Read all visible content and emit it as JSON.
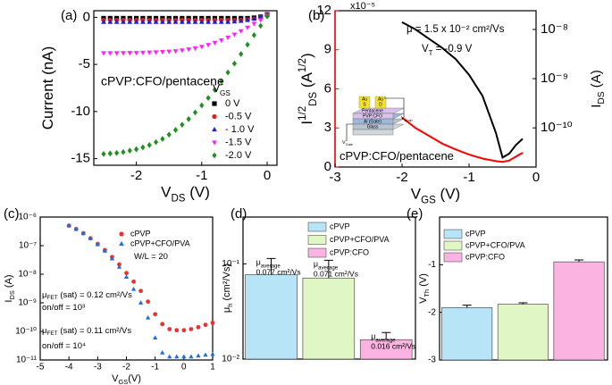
{
  "chart_data": [
    {
      "type": "scatter",
      "panel": "(a)",
      "xlabel": [
        {
          "text": "V"
        },
        {
          "text": "DS",
          "shift": "sub"
        },
        {
          "text": " (V)"
        }
      ],
      "ylabel": [
        {
          "text": "Current (nA)"
        }
      ],
      "xlim": [
        -2.65,
        0.15
      ],
      "xticks": [
        -2,
        -1,
        0
      ],
      "ylim": [
        -15.7,
        0.7
      ],
      "yticks": [
        0,
        -5,
        -10,
        -15
      ],
      "annotation": "cPVP:CFO/pentacene",
      "legend_title": [
        {
          "text": "V"
        },
        {
          "text": "GS",
          "shift": "sub"
        }
      ],
      "x": [
        -2.5,
        -2.4,
        -2.3,
        -2.2,
        -2.1,
        -2.0,
        -1.9,
        -1.8,
        -1.7,
        -1.6,
        -1.5,
        -1.4,
        -1.3,
        -1.2,
        -1.1,
        -1.0,
        -0.9,
        -0.8,
        -0.7,
        -0.6,
        -0.5,
        -0.4,
        -0.3,
        -0.2,
        -0.1,
        0.0
      ],
      "series": [
        {
          "name": "0 V",
          "color": "#000000",
          "marker": "square",
          "values": [
            -0.1,
            -0.1,
            -0.1,
            -0.1,
            -0.1,
            -0.1,
            -0.1,
            -0.1,
            -0.1,
            -0.1,
            -0.1,
            -0.1,
            -0.1,
            -0.1,
            -0.1,
            -0.1,
            -0.1,
            -0.1,
            -0.1,
            -0.1,
            -0.1,
            -0.1,
            -0.1,
            -0.05,
            0.05,
            0.3
          ]
        },
        {
          "name": "-0.5 V",
          "color": "#e02020",
          "marker": "circle",
          "values": [
            -0.3,
            -0.3,
            -0.3,
            -0.3,
            -0.3,
            -0.3,
            -0.3,
            -0.3,
            -0.3,
            -0.3,
            -0.3,
            -0.3,
            -0.3,
            -0.3,
            -0.3,
            -0.3,
            -0.3,
            -0.3,
            -0.3,
            -0.3,
            -0.3,
            -0.3,
            -0.25,
            -0.15,
            0,
            0.3
          ]
        },
        {
          "name": "- 1.0 V",
          "color": "#2020d0",
          "marker": "triangle-up",
          "values": [
            -0.5,
            -0.5,
            -0.5,
            -0.5,
            -0.5,
            -0.5,
            -0.5,
            -0.5,
            -0.5,
            -0.5,
            -0.5,
            -0.5,
            -0.5,
            -0.5,
            -0.5,
            -0.5,
            -0.5,
            -0.5,
            -0.5,
            -0.5,
            -0.45,
            -0.4,
            -0.3,
            -0.15,
            0.05,
            0.3
          ]
        },
        {
          "name": "-1.5 V",
          "color": "#ff20ff",
          "marker": "triangle-down",
          "values": [
            -3.8,
            -3.8,
            -3.8,
            -3.79,
            -3.78,
            -3.77,
            -3.75,
            -3.73,
            -3.7,
            -3.67,
            -3.63,
            -3.58,
            -3.5,
            -3.4,
            -3.28,
            -3.12,
            -2.92,
            -2.7,
            -2.44,
            -2.14,
            -1.82,
            -1.46,
            -1.08,
            -0.68,
            -0.28,
            0.2
          ]
        },
        {
          "name": "-2.0 V",
          "color": "#209020",
          "marker": "diamond",
          "values": [
            -14.5,
            -14.45,
            -14.4,
            -14.3,
            -14.15,
            -14.0,
            -13.8,
            -13.55,
            -13.25,
            -12.9,
            -12.45,
            -11.95,
            -11.4,
            -10.8,
            -10.1,
            -9.35,
            -8.55,
            -7.7,
            -6.8,
            -5.85,
            -4.9,
            -3.9,
            -2.9,
            -1.9,
            -0.9,
            0.1
          ]
        }
      ]
    },
    {
      "type": "line",
      "panel": "(b)",
      "xlabel": [
        {
          "text": "V"
        },
        {
          "text": "GS",
          "shift": "sub"
        },
        {
          "text": " (V)"
        }
      ],
      "ylabel": [
        {
          "text": "I"
        },
        {
          "text": "1/2",
          "shift": "super"
        },
        {
          "text": "DS",
          "shift": "sub"
        },
        {
          "text": " (A"
        },
        {
          "text": "1/2",
          "shift": "super"
        },
        {
          "text": ")"
        }
      ],
      "y2label": [
        {
          "text": "I"
        },
        {
          "text": "DS",
          "shift": "sub"
        },
        {
          "text": " (A)"
        }
      ],
      "y_axis_color": "#ff0000",
      "scale_label": "x10⁻⁵",
      "xlim": [
        -3,
        0
      ],
      "xticks": [
        -3,
        -2,
        -1,
        0
      ],
      "ylim": [
        0,
        12
      ],
      "yticks": [
        0,
        3,
        6,
        9,
        12
      ],
      "y2log": true,
      "y2lim": [
        1.6e-11,
        2.4e-08
      ],
      "y2ticks": [
        {
          "value": 1e-10,
          "label": "10⁻¹⁰"
        },
        {
          "value": 1e-09,
          "label": "10⁻⁹"
        },
        {
          "value": 1e-08,
          "label": "10⁻⁸"
        }
      ],
      "annotations": [
        [
          {
            "text": "μ = 1.5 x 10⁻² cm²/Vs"
          }
        ],
        [
          {
            "text": "V"
          },
          {
            "text": "T",
            "shift": "sub"
          },
          {
            "text": " = -0.9 V"
          }
        ],
        [
          {
            "text": "cPVP:CFO/pentacene"
          }
        ]
      ],
      "inset": [
        "Au",
        "S",
        "Au",
        "D",
        "Pentacene",
        "PVP:CFO",
        "Al (Gate)",
        "Glass"
      ],
      "inset_voltages": [
        [
          {
            "text": "V"
          },
          {
            "text": "Gate",
            "shift": "sub"
          }
        ],
        [
          {
            "text": "V"
          },
          {
            "text": "Drain",
            "shift": "sub"
          }
        ]
      ],
      "x": [
        -2.0,
        -1.8,
        -1.6,
        -1.4,
        -1.2,
        -1.0,
        -0.8,
        -0.6,
        -0.5,
        -0.4,
        -0.3,
        -0.2
      ],
      "series": [
        {
          "color": "#ff0000",
          "values": [
            3.8,
            3.0,
            2.4,
            1.8,
            1.35,
            0.95,
            0.65,
            0.45,
            0.4,
            0.5,
            0.8,
            1.1
          ]
        },
        {
          "color": "#000000",
          "axis": "y2",
          "values": [
            1.4e-08,
            1e-08,
            6.5e-09,
            4.2e-09,
            2.5e-09,
            1.2e-09,
            4.5e-10,
            8e-11,
            2.5e-11,
            3e-11,
            4.5e-11,
            6e-11
          ]
        }
      ]
    },
    {
      "type": "scatter",
      "panel": "(c)",
      "xlabel": [
        {
          "text": "V"
        },
        {
          "text": "GS",
          "shift": "sub"
        },
        {
          "text": "(V)"
        }
      ],
      "ylabel": [
        {
          "text": "I"
        },
        {
          "text": "DS",
          "shift": "sub"
        },
        {
          "text": " (A)"
        }
      ],
      "xlim": [
        -5,
        1
      ],
      "xticks": [
        -5,
        -4,
        -3,
        -2,
        -1,
        0,
        1
      ],
      "ylog": true,
      "ylim": [
        1e-11,
        1e-06
      ],
      "yticks": [
        {
          "value": 1e-11,
          "label": "10⁻¹¹"
        },
        {
          "value": 1e-10,
          "label": "10⁻¹⁰"
        },
        {
          "value": 1e-09,
          "label": "10⁻⁹"
        },
        {
          "value": 1e-08,
          "label": "10⁻⁸"
        },
        {
          "value": 1e-07,
          "label": "10⁻⁷"
        },
        {
          "value": 1e-06,
          "label": "10⁻⁶"
        }
      ],
      "annotations": [
        {
          "color": "#000000",
          "text": [
            {
              "text": "W/L = 20"
            }
          ]
        },
        {
          "color": "#e02020",
          "text": [
            {
              "text": "μ"
            },
            {
              "text": "FET",
              "shift": "sub"
            },
            {
              "text": " (sat) = 0.12 cm²/Vs"
            }
          ]
        },
        {
          "color": "#e02020",
          "text": [
            {
              "text": "on/off = 10³"
            }
          ]
        },
        {
          "color": "#2020d0",
          "text": [
            {
              "text": "μ"
            },
            {
              "text": "FET",
              "shift": "sub"
            },
            {
              "text": " (sat) = 0.11 cm²/Vs"
            }
          ]
        },
        {
          "color": "#2020d0",
          "text": [
            {
              "text": "on/off = 10⁴"
            }
          ]
        }
      ],
      "x": [
        -4,
        -3.75,
        -3.5,
        -3.25,
        -3,
        -2.75,
        -2.5,
        -2.25,
        -2,
        -1.75,
        -1.5,
        -1.25,
        -1,
        -0.75,
        -0.5,
        -0.25,
        0,
        0.25,
        0.5,
        0.75,
        1
      ],
      "series": [
        {
          "name": "cPVP",
          "color": "#f03030",
          "marker": "circle",
          "values": [
            5e-07,
            3.8e-07,
            2.7e-07,
            1.8e-07,
            1.15e-07,
            7e-08,
            4e-08,
            2.2e-08,
            1.1e-08,
            5.5e-09,
            2.6e-09,
            1.1e-09,
            4e-10,
            1.8e-10,
            1.2e-10,
            1.1e-10,
            1.1e-10,
            1.2e-10,
            1.4e-10,
            1.7e-10,
            2e-10
          ]
        },
        {
          "name": "cPVP+CFO/PVA",
          "color": "#1f6fe0",
          "marker": "triangle-up",
          "values": [
            5e-07,
            3.8e-07,
            2.7e-07,
            1.8e-07,
            1.1e-07,
            6.5e-08,
            3.5e-08,
            1.8e-08,
            8e-09,
            3e-09,
            1e-09,
            3e-10,
            6e-11,
            1.8e-11,
            1.3e-11,
            1.3e-11,
            1.3e-11,
            1.3e-11,
            1.4e-11,
            1.5e-11,
            1.6e-11
          ]
        }
      ]
    },
    {
      "type": "bar",
      "panel": "(d)",
      "ylabel": [
        {
          "text": "μ"
        },
        {
          "text": "h",
          "shift": "sub"
        },
        {
          "text": " (cm²/Vs)"
        }
      ],
      "ylog": true,
      "ylim": [
        0.01,
        0.31
      ],
      "yticks": [
        {
          "value": 0.01,
          "label": "10⁻²"
        },
        {
          "value": 0.1,
          "label": "10⁻¹"
        }
      ],
      "categories": [
        "cPVP",
        "cPVP+CFO/PVA",
        "cPVP:CFO"
      ],
      "colors": [
        "#b8e4f8",
        "#e0f6c4",
        "#fbb4e2"
      ],
      "values": [
        0.077,
        0.071,
        0.016
      ],
      "errors": [
        0.037,
        0.038,
        0.003
      ],
      "value_labels": [
        "0.077 cm²/Vs",
        "0.071 cm²/Vs",
        "0.016 cm²/Vs"
      ],
      "bar_caption": [
        {
          "text": "μ"
        },
        {
          "text": "average",
          "shift": "sub"
        }
      ]
    },
    {
      "type": "bar",
      "panel": "(e)",
      "ylabel": [
        {
          "text": "V"
        },
        {
          "text": "Th",
          "shift": "sub"
        },
        {
          "text": " (V)"
        }
      ],
      "ylim": [
        -3,
        0
      ],
      "yticks": [
        -3,
        -2,
        -1
      ],
      "categories": [
        "cPVP",
        "cPVP+CFO/PVA",
        "cPVP:CFO"
      ],
      "colors": [
        "#b8e4f8",
        "#e0f6c4",
        "#fbb4e2"
      ],
      "values": [
        -1.9,
        -1.83,
        -0.94
      ],
      "errors": [
        0.05,
        0.03,
        0.04
      ]
    }
  ]
}
